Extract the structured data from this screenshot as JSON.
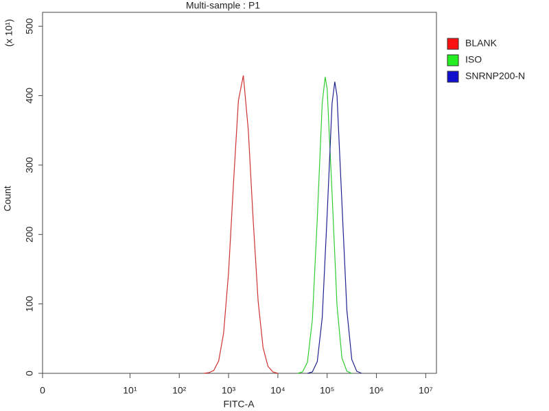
{
  "chart_data": {
    "type": "line",
    "title": "Multi-sample : P1",
    "x_label": "FITC-A",
    "y_label": "Count",
    "y_multiplier": "(x 10¹)",
    "xscale": "asinh",
    "xlim": [
      0,
      16500000
    ],
    "xticks": [
      0,
      {
        "value": 10,
        "label": "10¹"
      },
      {
        "value": 100,
        "label": "10²"
      },
      {
        "value": 1000,
        "label": "10³"
      },
      {
        "value": 10000,
        "label": "10⁴"
      },
      {
        "value": 100000,
        "label": "10⁵"
      },
      {
        "value": 1000000,
        "label": "10⁶"
      },
      {
        "value": 10000000,
        "label": "10⁷"
      }
    ],
    "ylim": [
      0,
      520
    ],
    "yticks": [
      0,
      100,
      200,
      300,
      400,
      500
    ],
    "legend": "right",
    "series": [
      {
        "name": "BLANK",
        "color": "#d03030",
        "legend_color": "#ff1010",
        "x": [
          316,
          398,
          501,
          631,
          794,
          1000,
          1259,
          1585,
          1995,
          2512,
          3162,
          3981,
          5012,
          6310,
          7943,
          10000
        ],
        "values": [
          0,
          1,
          4,
          18,
          58,
          145,
          274,
          393,
          429,
          351,
          220,
          104,
          37,
          10,
          2,
          0
        ]
      },
      {
        "name": "ISO",
        "color": "#2ecc2e",
        "legend_color": "#22ee22",
        "x": [
          25119,
          31623,
          39811,
          50119,
          63096,
          79433,
          91201,
          100000,
          125893,
          158489,
          199526,
          251189,
          316228
        ],
        "values": [
          0,
          2,
          16,
          77,
          223,
          389,
          427,
          410,
          259,
          98,
          22,
          3,
          0
        ]
      },
      {
        "name": "SNRNP200-N",
        "color": "#202090",
        "legend_color": "#1010cc",
        "x": [
          39811,
          50119,
          63096,
          79433,
          100000,
          125893,
          142889,
          158489,
          199526,
          251189,
          316228,
          398107,
          501187
        ],
        "values": [
          0,
          2,
          17,
          80,
          228,
          389,
          420,
          400,
          245,
          91,
          20,
          3,
          0
        ]
      }
    ]
  }
}
